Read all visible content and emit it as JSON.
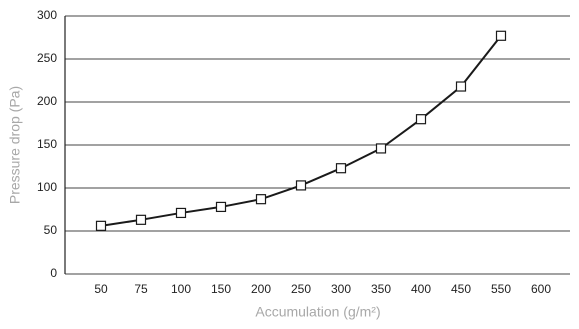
{
  "chart_data": {
    "type": "line",
    "x_label": "Accumulation (g/m²)",
    "y_label": "Pressure drop (Pa)",
    "categories": [
      "50",
      "75",
      "100",
      "150",
      "200",
      "250",
      "300",
      "350",
      "400",
      "450",
      "550",
      "600"
    ],
    "values": [
      56,
      63,
      71,
      78,
      87,
      103,
      123,
      146,
      180,
      218,
      277,
      null
    ],
    "color": "#1a1a1a",
    "ylim": [
      0,
      300
    ],
    "yticks": [
      0,
      50,
      100,
      150,
      200,
      250,
      300
    ],
    "grid": true
  }
}
